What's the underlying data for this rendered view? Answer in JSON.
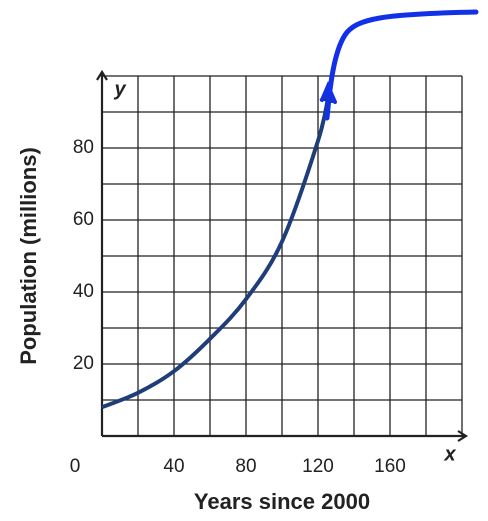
{
  "chart_data": {
    "type": "line",
    "x_label": "Years since 2000",
    "y_label": "Population (millions)",
    "x_axis_name": "x",
    "y_axis_name": "y",
    "xlim": [
      0,
      200
    ],
    "ylim": [
      0,
      100
    ],
    "xticks": [
      0,
      40,
      80,
      120,
      160
    ],
    "yticks": [
      20,
      40,
      60,
      80
    ],
    "xgrid": [
      0,
      20,
      40,
      60,
      80,
      100,
      120,
      140,
      160,
      180,
      200
    ],
    "ygrid": [
      0,
      10,
      20,
      30,
      40,
      50,
      60,
      70,
      80,
      90,
      100
    ],
    "grid": true,
    "series": [
      {
        "color": "#1f3d78",
        "x": [
          0,
          20,
          40,
          60,
          80,
          100,
          120,
          126
        ],
        "values": [
          8,
          12,
          18,
          27,
          38,
          54,
          82,
          95
        ]
      }
    ]
  }
}
